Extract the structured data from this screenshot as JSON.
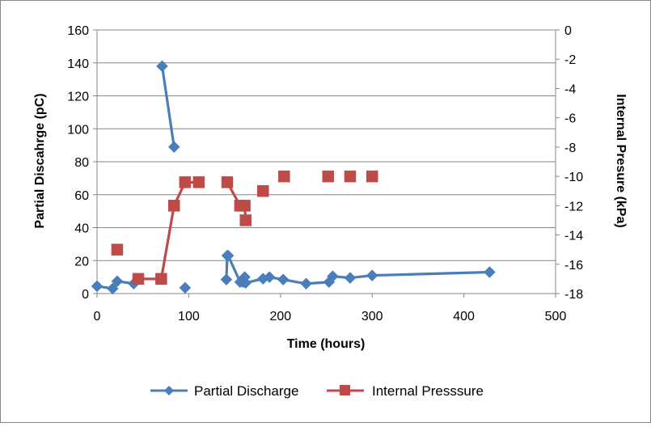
{
  "chart_data": {
    "type": "line",
    "title": "",
    "xlabel": "Time (hours)",
    "ylabel": "Partial Discahrge (pC)",
    "y2label": "Internal Presure (kPa)",
    "xlim": [
      0,
      500
    ],
    "ylim": [
      0,
      160
    ],
    "y2lim": [
      -18,
      0
    ],
    "xticks": [
      "0",
      "100",
      "200",
      "300",
      "400",
      "500"
    ],
    "yticks": [
      "0",
      "20",
      "40",
      "60",
      "80",
      "100",
      "120",
      "140",
      "160"
    ],
    "y2ticks": [
      "0",
      "-2",
      "-4",
      "-6",
      "-8",
      "-10",
      "-12",
      "-14",
      "-16",
      "-18"
    ],
    "grid": "horizontal",
    "legend_position": "bottom",
    "colors": {
      "partial_discharge": "#4A7EBB",
      "internal_pressure": "#BE4B48",
      "grid": "#868686"
    },
    "series": [
      {
        "name": "Partial Discharge",
        "axis": "left",
        "marker": "diamond",
        "x": [
          0,
          17,
          22,
          40,
          71,
          84,
          96,
          141,
          142,
          143,
          156,
          159,
          161,
          162,
          181,
          188,
          203,
          228,
          253,
          257,
          276,
          300,
          428
        ],
        "y": [
          4.5,
          3,
          7.5,
          6,
          138,
          89,
          3.5,
          8.5,
          23,
          23,
          7,
          7,
          10,
          6.5,
          9,
          10,
          8.5,
          6,
          7,
          10.5,
          9.5,
          11,
          13
        ],
        "segments": [
          [
            0,
            3
          ],
          [
            4,
            5
          ],
          [
            7,
            22
          ]
        ]
      },
      {
        "name": "Internal Presssure",
        "axis": "right",
        "marker": "square",
        "x": [
          22,
          45,
          70,
          84,
          96,
          111,
          142,
          156,
          161,
          162,
          181,
          204,
          252,
          276,
          300
        ],
        "y": [
          -15,
          -17,
          -17,
          -12,
          -10.4,
          -10.4,
          -10.4,
          -12,
          -12,
          -13,
          -11,
          -10,
          -10,
          -10,
          -10
        ],
        "segments": [
          [
            1,
            5
          ],
          [
            6,
            9
          ]
        ]
      }
    ]
  }
}
